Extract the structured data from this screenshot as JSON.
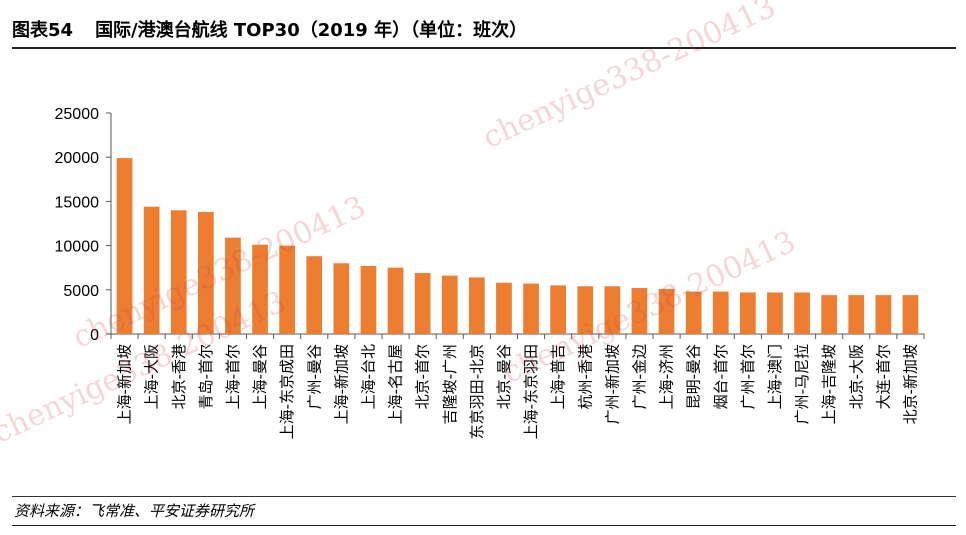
{
  "header": {
    "figure_label": "图表54",
    "title": "国际/港澳台航线 TOP30（2019 年）（单位：班次）"
  },
  "footer": {
    "source": "资料来源：飞常准、平安证券研究所"
  },
  "watermark": "chenyige338-200413",
  "colors": {
    "bar": "#ED7D31",
    "axis": "#595959"
  },
  "chart_data": {
    "type": "bar",
    "title": "国际/港澳台航线 TOP30（2019 年）（单位：班次）",
    "xlabel": "",
    "ylabel": "",
    "ylim": [
      0,
      25000
    ],
    "yticks": [
      0,
      5000,
      10000,
      15000,
      20000,
      25000
    ],
    "grid": false,
    "legend": "none",
    "categories": [
      "上海-新加坡",
      "上海-大阪",
      "北京-香港",
      "青岛-首尔",
      "上海-首尔",
      "上海-曼谷",
      "上海-东京成田",
      "广州-曼谷",
      "上海-新加坡",
      "上海-台北",
      "上海-名古屋",
      "北京-首尔",
      "吉隆坡-广州",
      "东京羽田-北京",
      "北京-曼谷",
      "上海-东京羽田",
      "上海-普吉",
      "杭州-香港",
      "广州-新加坡",
      "广州-金边",
      "上海-济州",
      "昆明-曼谷",
      "烟台-首尔",
      "广州-首尔",
      "上海-澳门",
      "广州-马尼拉",
      "上海-吉隆坡",
      "北京-大阪",
      "大连-首尔",
      "北京-新加坡"
    ],
    "values": [
      19900,
      14400,
      14000,
      13800,
      10900,
      10100,
      10000,
      8800,
      8000,
      7700,
      7500,
      6900,
      6600,
      6400,
      5800,
      5700,
      5500,
      5400,
      5400,
      5200,
      5100,
      4800,
      4800,
      4700,
      4700,
      4700,
      4400,
      4400,
      4400,
      4400
    ]
  }
}
